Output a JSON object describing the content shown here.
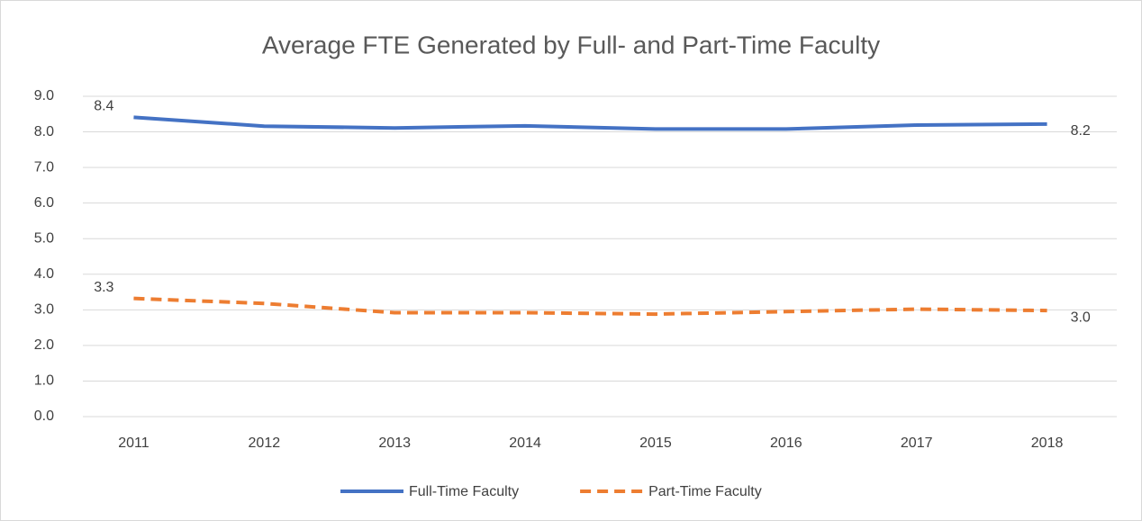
{
  "chart_data": {
    "type": "line",
    "title": "Average FTE Generated by Full- and Part-Time Faculty",
    "categories": [
      "2011",
      "2012",
      "2013",
      "2014",
      "2015",
      "2016",
      "2017",
      "2018"
    ],
    "series": [
      {
        "name": "Full-Time Faculty",
        "color": "#4472c4",
        "dash": false,
        "values": [
          8.41,
          8.16,
          8.11,
          8.17,
          8.08,
          8.08,
          8.19,
          8.22
        ],
        "value_labels": [
          "8.4",
          null,
          null,
          null,
          null,
          null,
          null,
          "8.2"
        ]
      },
      {
        "name": "Part-Time Faculty",
        "color": "#ed7d31",
        "dash": true,
        "values": [
          3.32,
          3.18,
          2.92,
          2.92,
          2.88,
          2.95,
          3.02,
          2.98
        ],
        "value_labels": [
          "3.3",
          null,
          null,
          null,
          null,
          null,
          null,
          "3.0"
        ]
      }
    ],
    "ylim": [
      0,
      9
    ],
    "yticks": [
      {
        "value": 0,
        "label": "0.0"
      },
      {
        "value": 1,
        "label": "1.0"
      },
      {
        "value": 2,
        "label": "2.0"
      },
      {
        "value": 3,
        "label": "3.0"
      },
      {
        "value": 4,
        "label": "4.0"
      },
      {
        "value": 5,
        "label": "5.0"
      },
      {
        "value": 6,
        "label": "6.0"
      },
      {
        "value": 7,
        "label": "7.0"
      },
      {
        "value": 8,
        "label": "8.0"
      },
      {
        "value": 9,
        "label": "9.0"
      }
    ],
    "grid": true,
    "legend": "bottom"
  }
}
